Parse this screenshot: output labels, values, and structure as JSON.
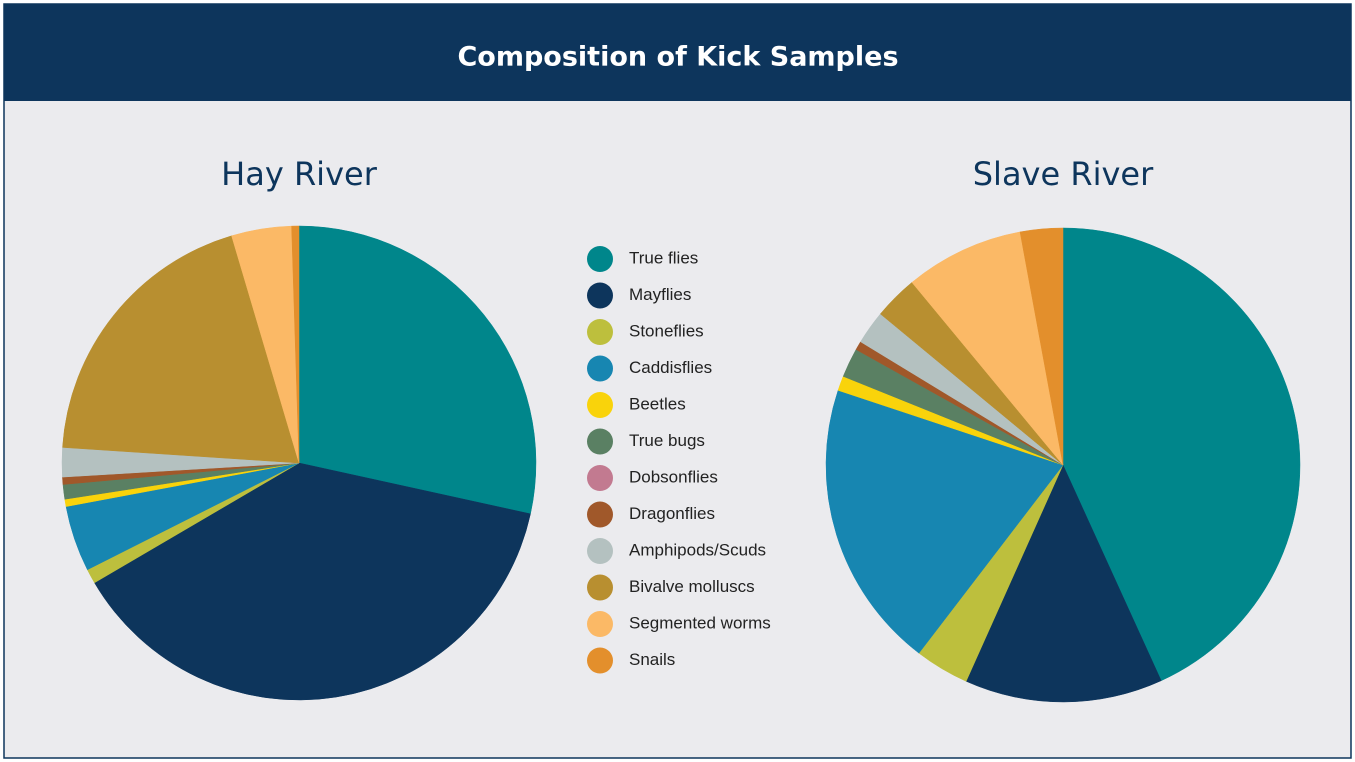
{
  "title": "Composition of Kick Samples",
  "chart_data": [
    {
      "type": "pie",
      "title": "Hay River",
      "categories": [
        "True flies",
        "Mayflies",
        "Stoneflies",
        "Caddisflies",
        "Beetles",
        "True bugs",
        "Dobsonflies",
        "Dragonflies",
        "Amphipods/Scuds",
        "Bivalve molluscs",
        "Segmented worms",
        "Snails"
      ],
      "values": [
        28.5,
        38.2,
        1,
        4.5,
        0.5,
        1,
        0,
        0.5,
        2,
        19.4,
        4.1,
        0.5
      ],
      "colors": [
        "#00868b",
        "#0d355c",
        "#bdbf3d",
        "#1786b1",
        "#f9d30b",
        "#5a8063",
        "#c27a90",
        "#a0582a",
        "#b4c1c0",
        "#b88f30",
        "#fbb966",
        "#e38f2c"
      ]
    },
    {
      "type": "pie",
      "title": "Slave River",
      "categories": [
        "True flies",
        "Mayflies",
        "Stoneflies",
        "Caddisflies",
        "Beetles",
        "True bugs",
        "Dobsonflies",
        "Dragonflies",
        "Amphipods/Scuds",
        "Bivalve molluscs",
        "Segmented worms",
        "Snails"
      ],
      "values": [
        43.2,
        13.5,
        3.7,
        19.7,
        1,
        2,
        0,
        0.6,
        2.3,
        3,
        8.1,
        2.9
      ],
      "colors": [
        "#00868b",
        "#0d355c",
        "#bdbf3d",
        "#1786b1",
        "#f9d30b",
        "#5a8063",
        "#c27a90",
        "#a0582a",
        "#b4c1c0",
        "#b88f30",
        "#fbb966",
        "#e38f2c"
      ]
    }
  ]
}
